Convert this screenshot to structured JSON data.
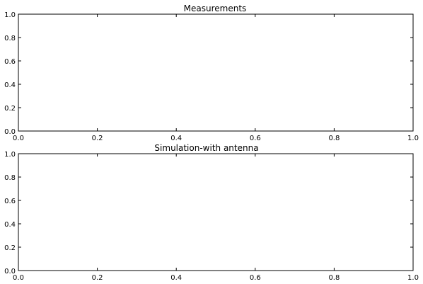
{
  "chart_data": [
    {
      "type": "line",
      "title": "Measurements",
      "xlabel": "",
      "ylabel": "",
      "xlim": [
        0.0,
        1.0
      ],
      "ylim": [
        0.0,
        1.0
      ],
      "x_ticks": [
        "0.0",
        "0.2",
        "0.4",
        "0.6",
        "0.8",
        "1.0"
      ],
      "y_ticks": [
        "0.0",
        "0.2",
        "0.4",
        "0.6",
        "0.8",
        "1.0"
      ],
      "series": [],
      "grid": false,
      "legend": "none"
    },
    {
      "type": "line",
      "title": "Simulation-with antenna",
      "xlabel": "",
      "ylabel": "",
      "xlim": [
        0.0,
        1.0
      ],
      "ylim": [
        0.0,
        1.0
      ],
      "x_ticks": [
        "0.0",
        "0.2",
        "0.4",
        "0.6",
        "0.8",
        "1.0"
      ],
      "y_ticks": [
        "0.0",
        "0.2",
        "0.4",
        "0.6",
        "0.8",
        "1.0"
      ],
      "series": [],
      "grid": false,
      "legend": "none"
    }
  ]
}
